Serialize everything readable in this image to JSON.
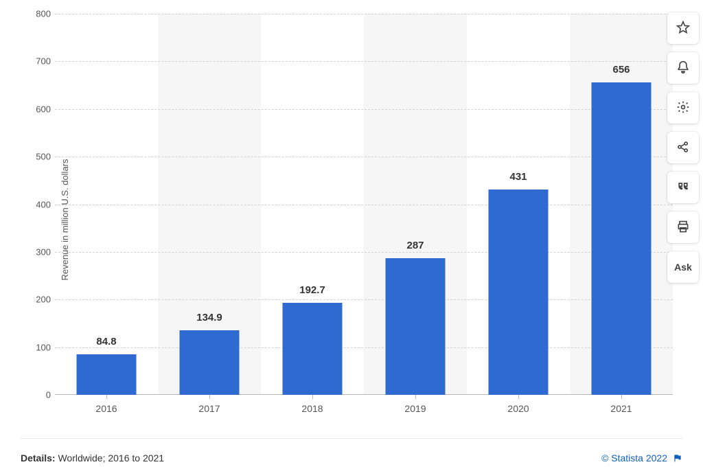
{
  "chart": {
    "type": "bar",
    "ylabel": "Revenue in million U.S. dollars",
    "ylabel_fontsize": 13,
    "categories": [
      "2016",
      "2017",
      "2018",
      "2019",
      "2020",
      "2021"
    ],
    "values": [
      84.8,
      134.9,
      192.7,
      287,
      431,
      656
    ],
    "value_labels": [
      "84.8",
      "134.9",
      "192.7",
      "287",
      "431",
      "656"
    ],
    "bar_color": "#2f6ad0",
    "band_color": "#f6f6f6",
    "grid_color": "#d0d0d0",
    "baseline_color": "#b7b7b7",
    "background_color": "#ffffff",
    "label_color": "#333333",
    "tick_color": "#555555",
    "ylim": [
      0,
      800
    ],
    "yticks": [
      0,
      100,
      200,
      300,
      400,
      500,
      600,
      700,
      800
    ],
    "bar_width_ratio": 0.58,
    "value_label_fontsize": 15,
    "value_label_fontweight": 700,
    "xaxis_fontsize": 14,
    "alternating_bands": true
  },
  "footer": {
    "details_label": "Details:",
    "details_text": "Worldwide; 2016 to 2021",
    "copyright": "© Statista 2022",
    "copyright_color": "#1060c0"
  },
  "toolbar": {
    "items": [
      {
        "name": "star-button",
        "icon": "star"
      },
      {
        "name": "bell-button",
        "icon": "bell"
      },
      {
        "name": "gear-button",
        "icon": "gear"
      },
      {
        "name": "share-button",
        "icon": "share"
      },
      {
        "name": "quote-button",
        "icon": "quote"
      },
      {
        "name": "print-button",
        "icon": "print"
      },
      {
        "name": "ask-button",
        "icon": "text",
        "text": "Ask"
      }
    ]
  }
}
